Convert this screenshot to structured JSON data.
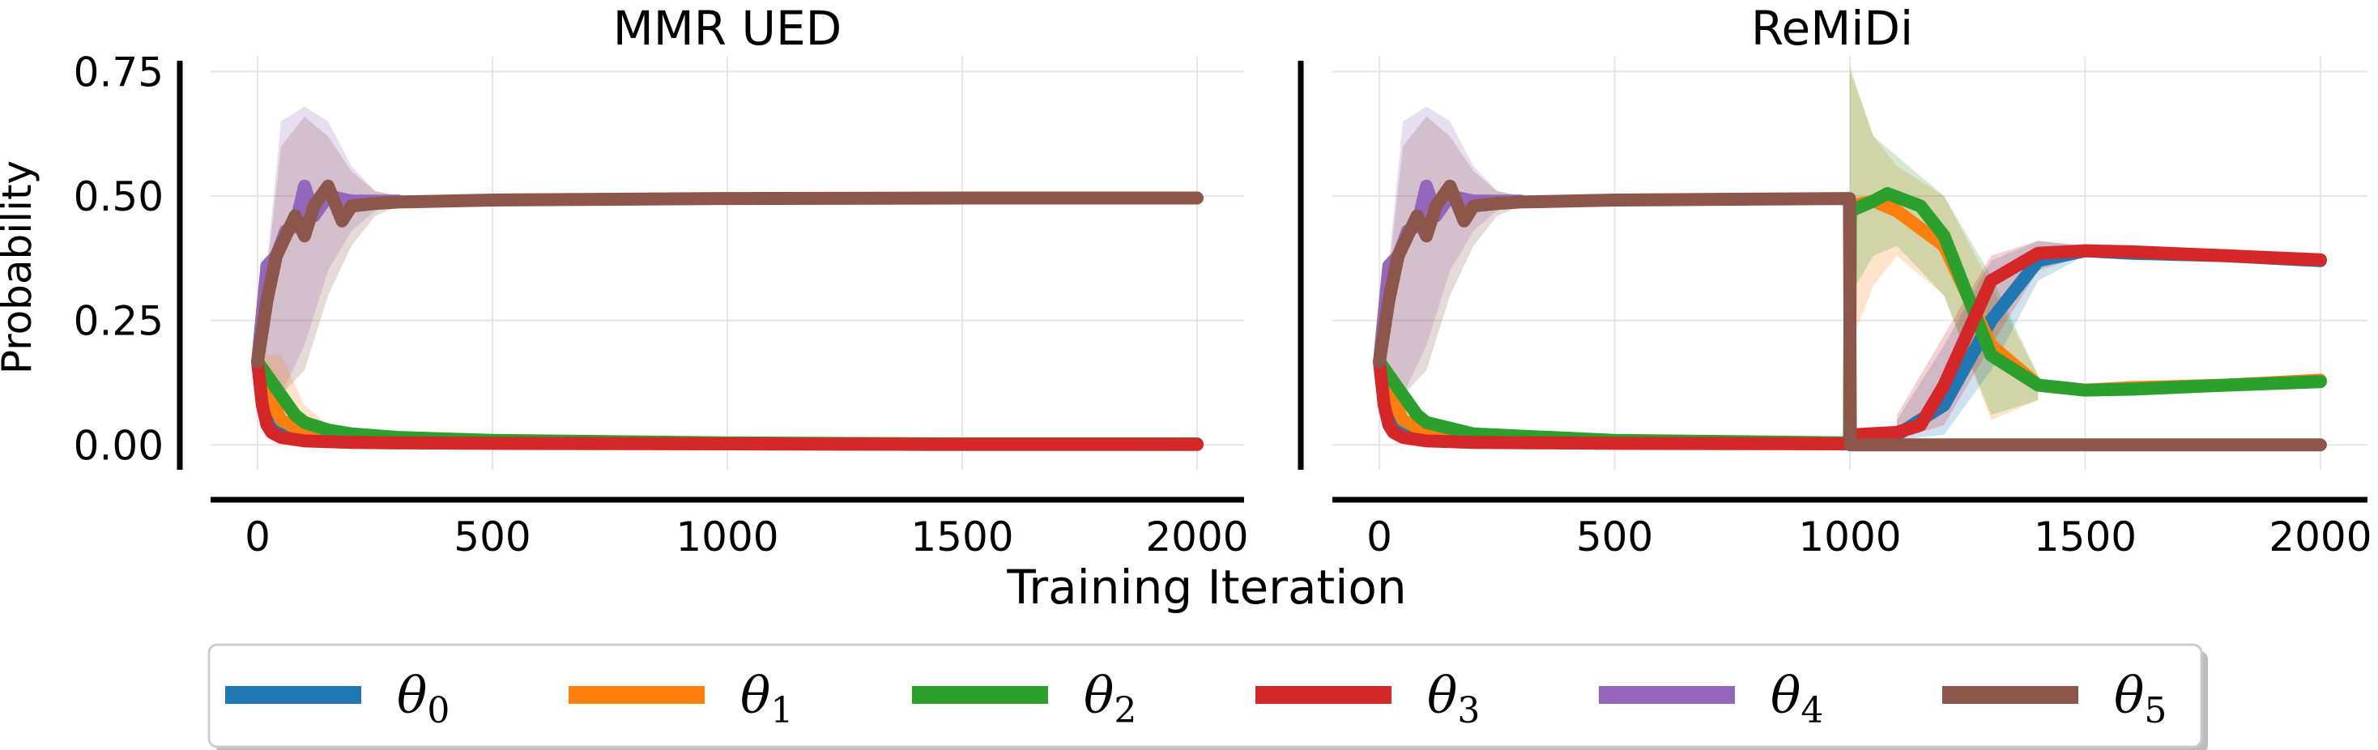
{
  "figure": {
    "xlabel": "Training Iteration",
    "ylabel": "Probability"
  },
  "colors": {
    "theta0": "#1f77b4",
    "theta1": "#ff7f0e",
    "theta2": "#2ca02c",
    "theta3": "#d62728",
    "theta4": "#9467bd",
    "theta5": "#8c564b",
    "grid": "#e6e6e6",
    "axis": "#000000"
  },
  "legend": {
    "placement": "bottom-center",
    "entries": [
      {
        "symbol": "θ",
        "sub": "0",
        "color": "#1f77b4"
      },
      {
        "symbol": "θ",
        "sub": "1",
        "color": "#ff7f0e"
      },
      {
        "symbol": "θ",
        "sub": "2",
        "color": "#2ca02c"
      },
      {
        "symbol": "θ",
        "sub": "3",
        "color": "#d62728"
      },
      {
        "symbol": "θ",
        "sub": "4",
        "color": "#9467bd"
      },
      {
        "symbol": "θ",
        "sub": "5",
        "color": "#8c564b"
      }
    ]
  },
  "chart_data": [
    {
      "type": "line",
      "title": "MMR UED",
      "xlabel": "Training Iteration",
      "ylabel": "Probability",
      "xlim": [
        -100,
        2100
      ],
      "ylim": [
        -0.05,
        0.78
      ],
      "xticks": [
        0,
        500,
        1000,
        1500,
        2000
      ],
      "xtick_labels": [
        "0",
        "500",
        "1000",
        "1500",
        "2000"
      ],
      "yticks": [
        0,
        0.25,
        0.5,
        0.75
      ],
      "ytick_labels": [
        "0.00",
        "0.25",
        "0.50",
        "0.75"
      ],
      "grid": true,
      "series": [
        {
          "key": "theta0",
          "x": [
            0,
            20,
            50,
            100,
            150,
            200,
            300,
            500,
            1000,
            1500,
            2000
          ],
          "y": [
            0.167,
            0.09,
            0.04,
            0.02,
            0.015,
            0.012,
            0.008,
            0.005,
            0.002,
            0.001,
            0.001
          ]
        },
        {
          "key": "theta1",
          "x": [
            0,
            20,
            50,
            100,
            150,
            200,
            300,
            500,
            1000,
            1500,
            2000
          ],
          "y": [
            0.167,
            0.11,
            0.05,
            0.025,
            0.018,
            0.014,
            0.01,
            0.006,
            0.003,
            0.002,
            0.001
          ]
        },
        {
          "key": "theta2",
          "x": [
            0,
            20,
            50,
            80,
            100,
            150,
            200,
            300,
            500,
            1000,
            1500,
            2000
          ],
          "y": [
            0.167,
            0.14,
            0.1,
            0.06,
            0.045,
            0.03,
            0.022,
            0.015,
            0.009,
            0.004,
            0.002,
            0.002
          ]
        },
        {
          "key": "theta3",
          "x": [
            0,
            10,
            20,
            30,
            50,
            100,
            200,
            300,
            500,
            1000,
            1500,
            2000
          ],
          "y": [
            0.167,
            0.08,
            0.04,
            0.025,
            0.015,
            0.008,
            0.005,
            0.004,
            0.003,
            0.002,
            0.001,
            0.001
          ]
        },
        {
          "key": "theta4",
          "x": [
            0,
            20,
            40,
            60,
            80,
            100,
            120,
            150,
            200,
            300
          ],
          "y": [
            0.167,
            0.36,
            0.38,
            0.43,
            0.44,
            0.52,
            0.46,
            0.5,
            0.49,
            0.49
          ]
        },
        {
          "key": "theta5",
          "x": [
            0,
            20,
            40,
            60,
            80,
            100,
            120,
            150,
            180,
            200,
            250,
            300,
            500,
            1000,
            1500,
            2000
          ],
          "y": [
            0.167,
            0.29,
            0.38,
            0.42,
            0.46,
            0.42,
            0.48,
            0.52,
            0.45,
            0.48,
            0.485,
            0.488,
            0.492,
            0.495,
            0.496,
            0.496
          ]
        }
      ],
      "bands": [
        {
          "key": "theta4",
          "x": [
            0,
            50,
            100,
            150,
            200,
            250,
            300
          ],
          "lower": [
            0.15,
            0.1,
            0.2,
            0.35,
            0.43,
            0.47,
            0.485
          ],
          "upper": [
            0.18,
            0.65,
            0.68,
            0.65,
            0.56,
            0.51,
            0.5
          ]
        },
        {
          "key": "theta5",
          "x": [
            0,
            50,
            100,
            150,
            200,
            250,
            300
          ],
          "lower": [
            0.15,
            0.1,
            0.15,
            0.3,
            0.4,
            0.46,
            0.48
          ],
          "upper": [
            0.18,
            0.6,
            0.66,
            0.62,
            0.55,
            0.51,
            0.5
          ]
        },
        {
          "key": "theta1",
          "x": [
            0,
            50,
            100,
            150,
            200
          ],
          "lower": [
            0.15,
            0.01,
            0.005,
            0.005,
            0.005
          ],
          "upper": [
            0.18,
            0.18,
            0.08,
            0.04,
            0.03
          ]
        }
      ]
    },
    {
      "type": "line",
      "title": "ReMiDi",
      "xlabel": "Training Iteration",
      "ylabel": "",
      "xlim": [
        -100,
        2100
      ],
      "ylim": [
        -0.05,
        0.78
      ],
      "xticks": [
        0,
        500,
        1000,
        1500,
        2000
      ],
      "xtick_labels": [
        "0",
        "500",
        "1000",
        "1500",
        "2000"
      ],
      "yticks": [
        0,
        0.25,
        0.5,
        0.75
      ],
      "ytick_labels": [
        "0.00",
        "0.25",
        "0.50",
        "0.75"
      ],
      "grid": true,
      "series": [
        {
          "key": "theta0",
          "x": [
            0,
            20,
            50,
            100,
            200,
            500,
            999,
            1001,
            1100,
            1200,
            1300,
            1400,
            1500,
            1600,
            1800,
            2000
          ],
          "y": [
            0.167,
            0.09,
            0.04,
            0.02,
            0.012,
            0.005,
            0.002,
            0.02,
            0.02,
            0.08,
            0.25,
            0.37,
            0.39,
            0.385,
            0.38,
            0.37
          ]
        },
        {
          "key": "theta1",
          "x": [
            0,
            20,
            50,
            100,
            200,
            500,
            999,
            1001,
            1050,
            1100,
            1200,
            1300,
            1400,
            1500,
            1600,
            1800,
            2000
          ],
          "y": [
            0.167,
            0.11,
            0.05,
            0.025,
            0.014,
            0.006,
            0.003,
            0.48,
            0.49,
            0.47,
            0.4,
            0.2,
            0.12,
            0.11,
            0.115,
            0.12,
            0.13
          ]
        },
        {
          "key": "theta2",
          "x": [
            0,
            20,
            50,
            80,
            100,
            200,
            500,
            999,
            1001,
            1050,
            1080,
            1150,
            1200,
            1250,
            1300,
            1400,
            1500,
            1600,
            1800,
            2000
          ],
          "y": [
            0.167,
            0.14,
            0.1,
            0.06,
            0.045,
            0.022,
            0.009,
            0.004,
            0.47,
            0.49,
            0.505,
            0.48,
            0.42,
            0.3,
            0.18,
            0.12,
            0.11,
            0.112,
            0.12,
            0.127
          ]
        },
        {
          "key": "theta3",
          "x": [
            0,
            10,
            20,
            30,
            50,
            100,
            200,
            500,
            999,
            1001,
            1100,
            1150,
            1200,
            1300,
            1400,
            1500,
            1600,
            1800,
            2000
          ],
          "y": [
            0.167,
            0.08,
            0.04,
            0.025,
            0.015,
            0.008,
            0.005,
            0.003,
            0.002,
            0.02,
            0.025,
            0.04,
            0.12,
            0.33,
            0.385,
            0.39,
            0.388,
            0.38,
            0.372
          ]
        },
        {
          "key": "theta4",
          "x": [
            0,
            20,
            40,
            60,
            80,
            100,
            120,
            150,
            200,
            300
          ],
          "y": [
            0.167,
            0.36,
            0.38,
            0.43,
            0.44,
            0.52,
            0.46,
            0.5,
            0.49,
            0.49
          ]
        },
        {
          "key": "theta5",
          "x": [
            0,
            20,
            40,
            60,
            80,
            100,
            120,
            150,
            180,
            200,
            250,
            300,
            500,
            999,
            1001,
            1500,
            2000
          ],
          "y": [
            0.167,
            0.29,
            0.38,
            0.42,
            0.46,
            0.42,
            0.48,
            0.52,
            0.45,
            0.48,
            0.485,
            0.488,
            0.492,
            0.495,
            0.0,
            0.0,
            0.0
          ]
        }
      ],
      "bands": [
        {
          "key": "theta4",
          "x": [
            0,
            50,
            100,
            150,
            200,
            250,
            300
          ],
          "lower": [
            0.15,
            0.1,
            0.2,
            0.35,
            0.43,
            0.47,
            0.485
          ],
          "upper": [
            0.18,
            0.65,
            0.68,
            0.65,
            0.56,
            0.51,
            0.5
          ]
        },
        {
          "key": "theta5",
          "x": [
            0,
            50,
            100,
            150,
            200,
            250,
            300
          ],
          "lower": [
            0.15,
            0.1,
            0.15,
            0.3,
            0.4,
            0.46,
            0.48
          ],
          "upper": [
            0.18,
            0.6,
            0.66,
            0.62,
            0.55,
            0.51,
            0.5
          ]
        },
        {
          "key": "theta1",
          "x": [
            1000,
            1050,
            1100,
            1200,
            1300,
            1400
          ],
          "lower": [
            0.2,
            0.32,
            0.38,
            0.3,
            0.05,
            0.09
          ],
          "upper": [
            0.75,
            0.62,
            0.56,
            0.5,
            0.32,
            0.14
          ]
        },
        {
          "key": "theta2",
          "x": [
            1000,
            1050,
            1100,
            1200,
            1300,
            1400
          ],
          "lower": [
            0.3,
            0.38,
            0.4,
            0.3,
            0.06,
            0.09
          ],
          "upper": [
            0.76,
            0.62,
            0.58,
            0.5,
            0.34,
            0.14
          ]
        },
        {
          "key": "theta0",
          "x": [
            1100,
            1200,
            1300,
            1400,
            1500
          ],
          "lower": [
            0.01,
            0.02,
            0.15,
            0.33,
            0.38
          ],
          "upper": [
            0.05,
            0.2,
            0.37,
            0.41,
            0.4
          ]
        },
        {
          "key": "theta3",
          "x": [
            1100,
            1200,
            1300,
            1400,
            1500
          ],
          "lower": [
            0.01,
            0.04,
            0.2,
            0.35,
            0.38
          ],
          "upper": [
            0.06,
            0.22,
            0.38,
            0.41,
            0.4
          ]
        }
      ]
    }
  ]
}
